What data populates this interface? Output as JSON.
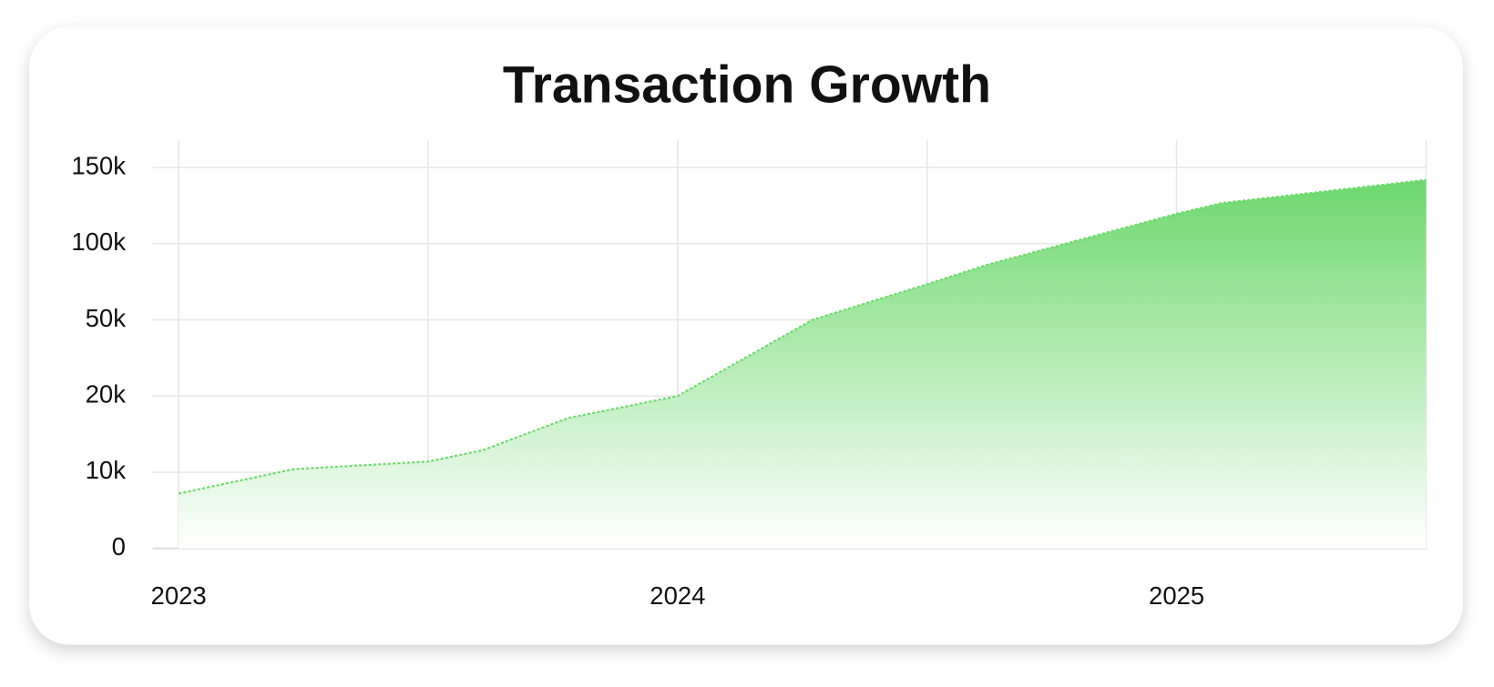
{
  "chart_data": {
    "type": "area",
    "title": "Transaction Growth",
    "x": [
      2023.0,
      2023.23,
      2023.5,
      2023.61,
      2023.78,
      2024.0,
      2024.27,
      2024.5,
      2024.62,
      2025.0,
      2025.09,
      2025.5
    ],
    "series": [
      {
        "color": "#6dd86d",
        "values": [
          7200,
          10400,
          11400,
          12900,
          17100,
          20000,
          50000,
          73400,
          86100,
          119600,
          126600,
          141800
        ]
      }
    ],
    "xlim": [
      2023,
      2025.5
    ],
    "xticks": [
      2023,
      2024,
      2025
    ],
    "xminor": [
      2023.5,
      2024.5,
      2025.5
    ],
    "ylim": [
      0,
      150000
    ],
    "yscale": "piecewise",
    "yticks": [
      0,
      {
        "value": 10000,
        "label": "10k"
      },
      {
        "value": 20000,
        "label": "20k"
      },
      {
        "value": 50000,
        "label": "50k"
      },
      {
        "value": 100000,
        "label": "100k"
      },
      {
        "value": 150000,
        "label": "150k"
      }
    ],
    "grid": true
  }
}
